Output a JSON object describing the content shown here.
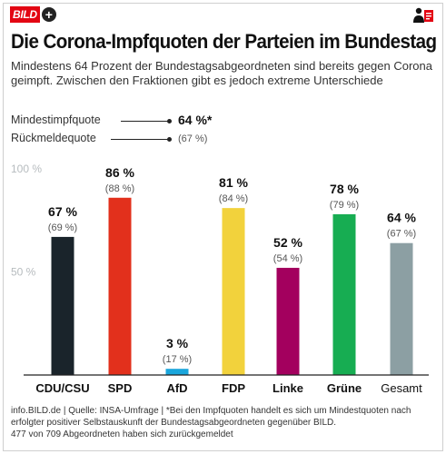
{
  "header": {
    "brand": "BILD",
    "brand_plus": "+",
    "title": "Die Corona-Impfquoten der Parteien im Bundestag",
    "subtitle": "Mindestens 64 Prozent der Bundestagsabgeordneten sind bereits gegen Corona geimpft. Zwischen den Fraktionen gibt es jedoch extreme Unterschiede"
  },
  "legend": {
    "primary_label": "Mindestimpfquote",
    "primary_value": "64 %*",
    "secondary_label": "Rückmeldequote",
    "secondary_value": "(67 %)"
  },
  "chart_data": {
    "type": "bar",
    "ylim": [
      0,
      100
    ],
    "yticks": [
      {
        "value": 100,
        "label": "100 %"
      },
      {
        "value": 50,
        "label": "50 %"
      }
    ],
    "grid": false,
    "categories": [
      "CDU/CSU",
      "SPD",
      "AfD",
      "FDP",
      "Linke",
      "Grüne",
      "Gesamt"
    ],
    "series": [
      {
        "values": [
          67,
          86,
          3,
          81,
          52,
          78,
          64
        ],
        "labels": [
          "67 %",
          "86 %",
          "3 %",
          "81 %",
          "52 %",
          "78 %",
          "64 %"
        ]
      },
      {
        "values": [
          69,
          88,
          17,
          84,
          54,
          79,
          67
        ],
        "labels": [
          "(69 %)",
          "(88 %)",
          "(17 %)",
          "(84 %)",
          "(54 %)",
          "(79 %)",
          "(67 %)"
        ]
      }
    ],
    "colors": [
      "#1a242b",
      "#e2301c",
      "#1aa6dc",
      "#f2d23c",
      "#a3005e",
      "#17ad52",
      "#8c9fa3"
    ]
  },
  "footer": {
    "source": "info.BILD.de | Quelle: INSA-Umfrage | *Bei den Impfquoten handelt es sich um Mindestquoten nach erfolgter positiver Selbstauskunft der Bundestagsabgeordneten gegenüber BILD.",
    "note": "477 of 709 Abgeordneten haben sich zurückgemeldet"
  }
}
